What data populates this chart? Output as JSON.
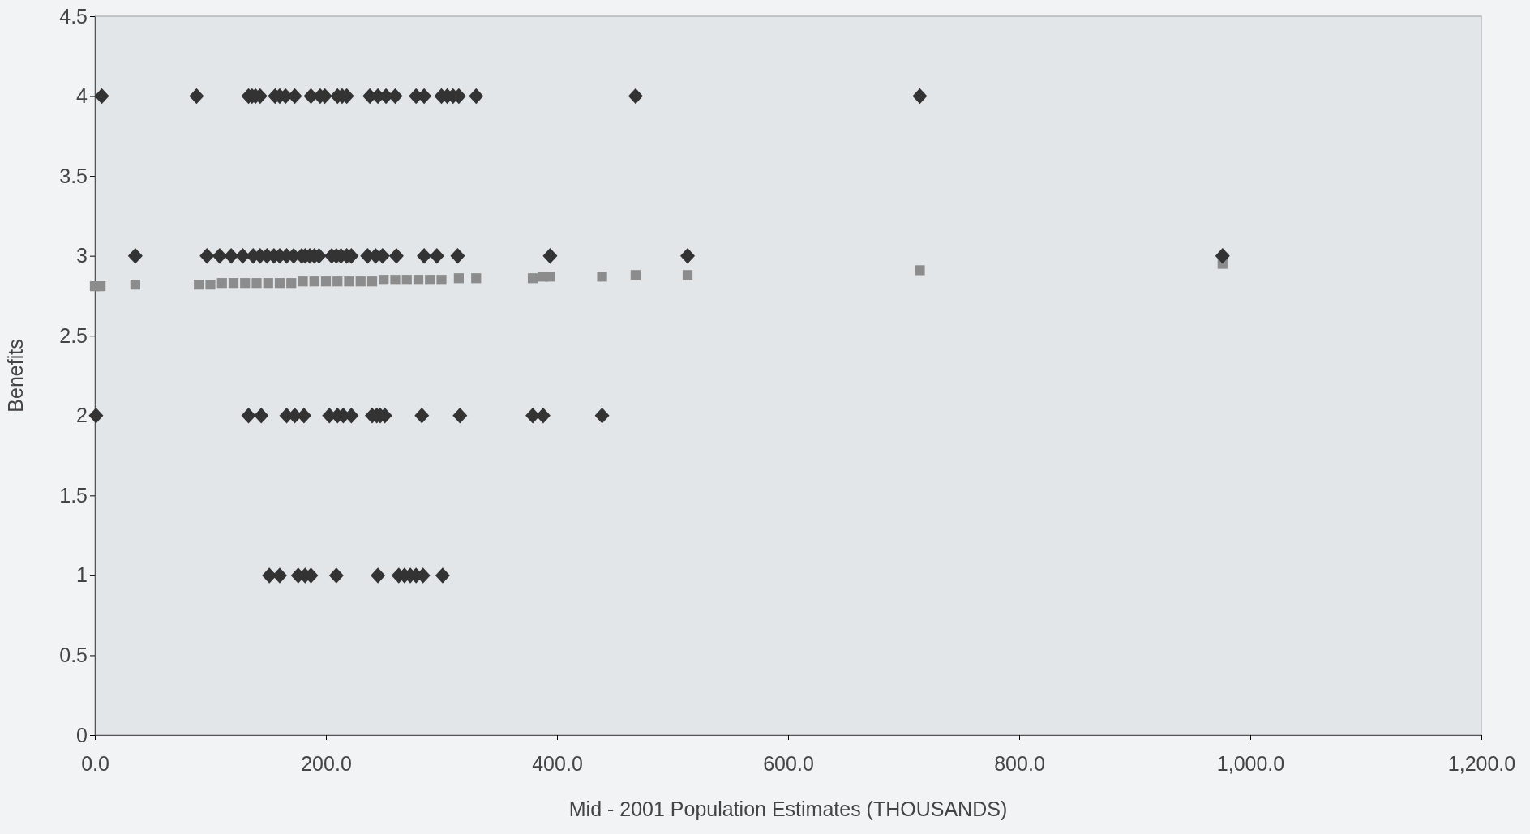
{
  "chart_data": {
    "type": "scatter",
    "xlabel": "Mid - 2001 Population Estimates (THOUSANDS)",
    "ylabel": "Benefits",
    "xlim": [
      0,
      1200
    ],
    "xticks": [
      {
        "value": 0,
        "label": "0.0"
      },
      {
        "value": 200,
        "label": "200.0"
      },
      {
        "value": 400,
        "label": "400.0"
      },
      {
        "value": 600,
        "label": "600.0"
      },
      {
        "value": 800,
        "label": "800.0"
      },
      {
        "value": 1000,
        "label": "1,000.0"
      },
      {
        "value": 1200,
        "label": "1,200.0"
      }
    ],
    "ylim": [
      0,
      4.5
    ],
    "yticks": [
      0,
      0.5,
      1,
      1.5,
      2,
      2.5,
      3,
      3.5,
      4,
      4.5
    ],
    "series": [
      {
        "color": "#8c8c8c",
        "marker": "square",
        "x": [
          0,
          5,
          35,
          90,
          100,
          110,
          120,
          130,
          140,
          150,
          160,
          170,
          180,
          190,
          200,
          210,
          220,
          230,
          240,
          250,
          260,
          270,
          280,
          290,
          300,
          315,
          330,
          379,
          388,
          394,
          439,
          468,
          513,
          714,
          976
        ],
        "values": [
          2.81,
          2.81,
          2.82,
          2.82,
          2.82,
          2.83,
          2.83,
          2.83,
          2.83,
          2.83,
          2.83,
          2.83,
          2.84,
          2.84,
          2.84,
          2.84,
          2.84,
          2.84,
          2.84,
          2.85,
          2.85,
          2.85,
          2.85,
          2.85,
          2.85,
          2.86,
          2.86,
          2.86,
          2.87,
          2.87,
          2.87,
          2.88,
          2.88,
          2.91,
          2.95
        ]
      },
      {
        "color": "#333333",
        "marker": "diamond",
        "x": [
          6,
          88,
          133,
          136,
          139,
          143,
          156,
          160,
          165,
          173,
          187,
          195,
          199,
          210,
          214,
          218,
          238,
          245,
          252,
          260,
          278,
          285,
          300,
          305,
          310,
          315,
          330,
          468,
          714,
          35,
          97,
          108,
          118,
          128,
          137,
          143,
          149,
          155,
          160,
          166,
          172,
          179,
          182,
          186,
          190,
          194,
          205,
          209,
          213,
          218,
          222,
          236,
          243,
          249,
          261,
          285,
          296,
          314,
          394,
          513,
          976,
          1,
          133,
          144,
          166,
          173,
          181,
          203,
          210,
          215,
          222,
          240,
          244,
          247,
          251,
          283,
          316,
          379,
          388,
          439,
          151,
          160,
          176,
          182,
          187,
          209,
          245,
          263,
          268,
          273,
          278,
          284,
          301
        ],
        "values": [
          4,
          4,
          4,
          4,
          4,
          4,
          4,
          4,
          4,
          4,
          4,
          4,
          4,
          4,
          4,
          4,
          4,
          4,
          4,
          4,
          4,
          4,
          4,
          4,
          4,
          4,
          4,
          4,
          4,
          3,
          3,
          3,
          3,
          3,
          3,
          3,
          3,
          3,
          3,
          3,
          3,
          3,
          3,
          3,
          3,
          3,
          3,
          3,
          3,
          3,
          3,
          3,
          3,
          3,
          3,
          3,
          3,
          3,
          3,
          3,
          3,
          2,
          2,
          2,
          2,
          2,
          2,
          2,
          2,
          2,
          2,
          2,
          2,
          2,
          2,
          2,
          2,
          2,
          2,
          2,
          1,
          1,
          1,
          1,
          1,
          1,
          1,
          1,
          1,
          1,
          1,
          1,
          1
        ]
      }
    ]
  }
}
